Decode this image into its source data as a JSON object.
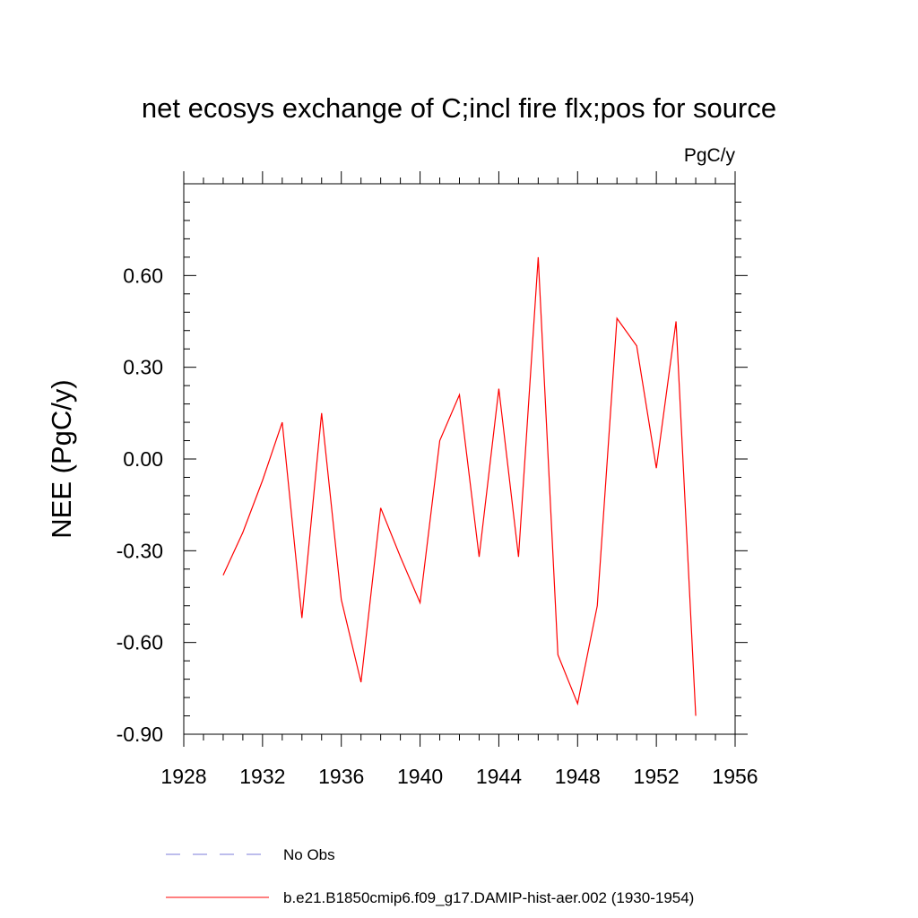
{
  "chart_data": {
    "type": "line",
    "title": "net ecosys exchange of C;incl fire flx;pos for source",
    "units_label": "PgC/y",
    "ylabel": "NEE  (PgC/y)",
    "xlabel": "",
    "xlim": [
      1928,
      1956
    ],
    "ylim": [
      -0.9,
      0.9
    ],
    "x_ticks": [
      1928,
      1932,
      1936,
      1940,
      1944,
      1948,
      1952,
      1956
    ],
    "x_tick_labels": [
      "1928",
      "1932",
      "1936",
      "1940",
      "1944",
      "1948",
      "1952",
      "1956"
    ],
    "y_ticks": [
      -0.9,
      -0.6,
      -0.3,
      0.0,
      0.3,
      0.6
    ],
    "y_tick_labels": [
      "-0.90",
      "-0.60",
      "-0.30",
      "0.00",
      "0.30",
      "0.60"
    ],
    "grid": false,
    "legend_position": "bottom",
    "series": [
      {
        "name": "No Obs",
        "color": "#7b7bd8",
        "dash": "dashed",
        "x": [],
        "values": []
      },
      {
        "name": "b.e21.B1850cmip6.f09_g17.DAMIP-hist-aer.002 (1930-1954)",
        "color": "#ff0000",
        "dash": "solid",
        "x": [
          1930,
          1931,
          1932,
          1933,
          1934,
          1935,
          1936,
          1937,
          1938,
          1939,
          1940,
          1941,
          1942,
          1943,
          1944,
          1945,
          1946,
          1947,
          1948,
          1949,
          1950,
          1951,
          1952,
          1953,
          1954
        ],
        "values": [
          -0.38,
          -0.24,
          -0.07,
          0.12,
          -0.52,
          0.15,
          -0.46,
          -0.73,
          -0.16,
          -0.32,
          -0.47,
          0.06,
          0.21,
          -0.32,
          0.23,
          -0.32,
          0.66,
          -0.64,
          -0.8,
          -0.48,
          0.46,
          0.37,
          -0.03,
          0.45,
          -0.84
        ]
      }
    ]
  }
}
